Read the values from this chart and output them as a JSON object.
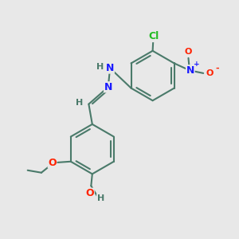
{
  "background_color": "#e8e8e8",
  "bond_color": "#4a7a6a",
  "bond_width": 1.5,
  "atom_colors": {
    "C": "#4a7a6a",
    "H": "#4a7a6a",
    "N": "#1a1aff",
    "O": "#ff2200",
    "Cl": "#22bb22"
  },
  "font_size": 9,
  "fig_width": 3.0,
  "fig_height": 3.0,
  "dpi": 100
}
